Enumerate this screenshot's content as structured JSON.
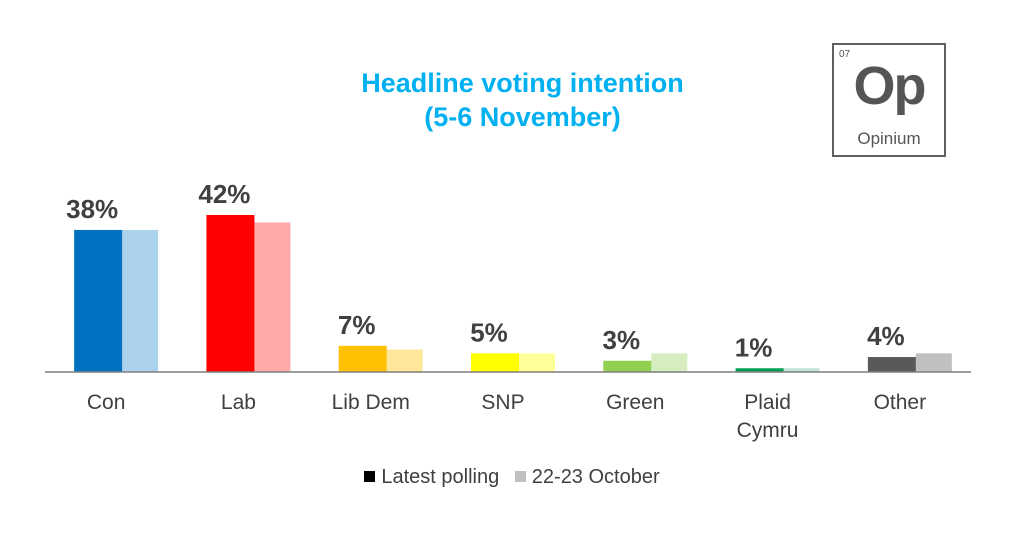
{
  "title": "Headline voting intention",
  "subtitle": "(5-6 November)",
  "logo": {
    "number": "07",
    "symbol": "Op",
    "name": "Opinium"
  },
  "legend": [
    {
      "name": "Latest polling",
      "color": "#000000"
    },
    {
      "name": "22-23 October",
      "color": "#BFBFBF"
    }
  ],
  "chart_data": {
    "type": "bar",
    "title": "Headline voting intention",
    "subtitle": "(5-6 November)",
    "categories": [
      "Con",
      "Lab",
      "Lib Dem",
      "SNP",
      "Green",
      "Plaid Cymru",
      "Other"
    ],
    "series": [
      {
        "name": "Latest polling",
        "values": [
          38,
          42,
          7,
          5,
          3,
          1,
          4
        ],
        "data_labels": [
          "38%",
          "42%",
          "7%",
          "5%",
          "3%",
          "1%",
          "4%"
        ]
      },
      {
        "name": "22-23 October",
        "values": [
          38,
          40,
          6,
          5,
          5,
          1,
          5
        ]
      }
    ],
    "colors_latest": [
      "#0070C0",
      "#FF0000",
      "#FFC000",
      "#FFFF00",
      "#92D050",
      "#00A050",
      "#595959"
    ],
    "colors_previous": [
      "#ADD3EC",
      "#FFAAAA",
      "#FFE699",
      "#FFFF99",
      "#D6EDC0",
      "#BFE6D3",
      "#C0C0C0"
    ],
    "ylim": [
      0,
      45
    ],
    "grid": false,
    "legend_position": "bottom"
  }
}
